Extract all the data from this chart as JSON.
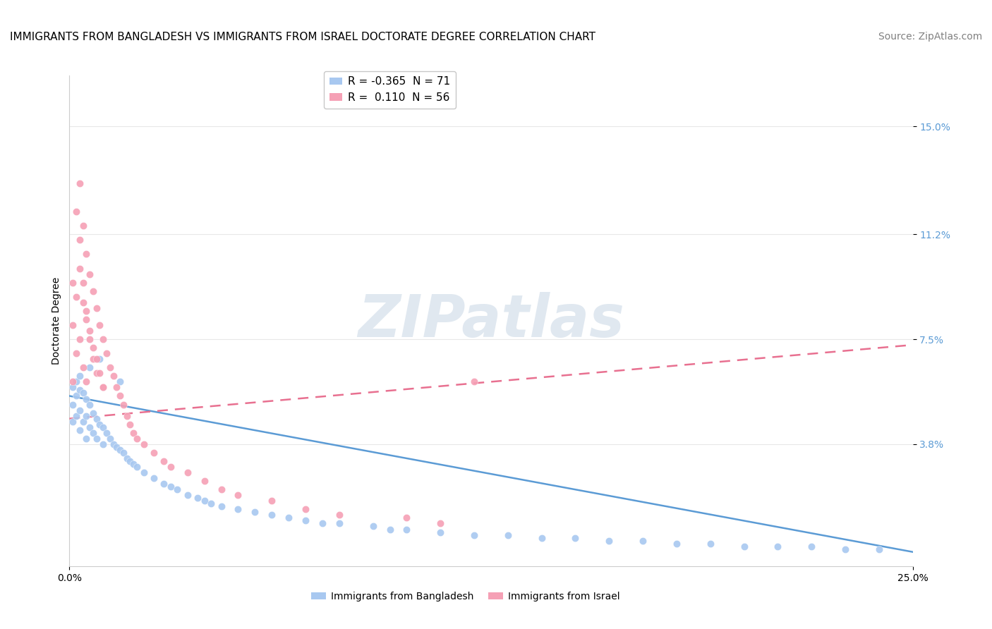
{
  "title": "IMMIGRANTS FROM BANGLADESH VS IMMIGRANTS FROM ISRAEL DOCTORATE DEGREE CORRELATION CHART",
  "source": "Source: ZipAtlas.com",
  "ylabel": "Doctorate Degree",
  "ytick_labels": [
    "3.8%",
    "7.5%",
    "11.2%",
    "15.0%"
  ],
  "ytick_values": [
    0.038,
    0.075,
    0.112,
    0.15
  ],
  "xlim": [
    0.0,
    0.25
  ],
  "ylim": [
    -0.005,
    0.168
  ],
  "watermark": "ZIPatlas",
  "legend_entries": [
    {
      "label": "R = -0.365  N = 71",
      "color": "#A8C8F0"
    },
    {
      "label": "R =  0.110  N = 56",
      "color": "#F5A0B5"
    }
  ],
  "series_bangladesh": {
    "color": "#A8C8F0",
    "x": [
      0.001,
      0.001,
      0.001,
      0.002,
      0.002,
      0.002,
      0.003,
      0.003,
      0.003,
      0.004,
      0.004,
      0.005,
      0.005,
      0.005,
      0.006,
      0.006,
      0.007,
      0.007,
      0.008,
      0.008,
      0.009,
      0.01,
      0.01,
      0.011,
      0.012,
      0.013,
      0.014,
      0.015,
      0.016,
      0.017,
      0.018,
      0.019,
      0.02,
      0.022,
      0.025,
      0.028,
      0.03,
      0.032,
      0.035,
      0.038,
      0.04,
      0.042,
      0.045,
      0.05,
      0.055,
      0.06,
      0.065,
      0.07,
      0.075,
      0.08,
      0.09,
      0.095,
      0.1,
      0.11,
      0.12,
      0.13,
      0.14,
      0.15,
      0.16,
      0.17,
      0.18,
      0.19,
      0.2,
      0.21,
      0.22,
      0.23,
      0.24,
      0.003,
      0.006,
      0.009,
      0.015
    ],
    "y": [
      0.058,
      0.052,
      0.046,
      0.06,
      0.055,
      0.048,
      0.057,
      0.05,
      0.043,
      0.056,
      0.046,
      0.054,
      0.048,
      0.04,
      0.052,
      0.044,
      0.049,
      0.042,
      0.047,
      0.04,
      0.045,
      0.044,
      0.038,
      0.042,
      0.04,
      0.038,
      0.037,
      0.036,
      0.035,
      0.033,
      0.032,
      0.031,
      0.03,
      0.028,
      0.026,
      0.024,
      0.023,
      0.022,
      0.02,
      0.019,
      0.018,
      0.017,
      0.016,
      0.015,
      0.014,
      0.013,
      0.012,
      0.011,
      0.01,
      0.01,
      0.009,
      0.008,
      0.008,
      0.007,
      0.006,
      0.006,
      0.005,
      0.005,
      0.004,
      0.004,
      0.003,
      0.003,
      0.002,
      0.002,
      0.002,
      0.001,
      0.001,
      0.062,
      0.065,
      0.068,
      0.06
    ]
  },
  "series_israel": {
    "color": "#F5A0B5",
    "x": [
      0.001,
      0.001,
      0.001,
      0.002,
      0.002,
      0.002,
      0.003,
      0.003,
      0.003,
      0.004,
      0.004,
      0.004,
      0.005,
      0.005,
      0.005,
      0.006,
      0.006,
      0.007,
      0.007,
      0.008,
      0.008,
      0.009,
      0.01,
      0.01,
      0.011,
      0.012,
      0.013,
      0.014,
      0.015,
      0.016,
      0.017,
      0.018,
      0.019,
      0.02,
      0.022,
      0.025,
      0.028,
      0.03,
      0.035,
      0.04,
      0.045,
      0.05,
      0.06,
      0.07,
      0.08,
      0.1,
      0.11,
      0.12,
      0.003,
      0.004,
      0.005,
      0.006,
      0.007,
      0.008,
      0.009,
      0.01
    ],
    "y": [
      0.08,
      0.095,
      0.06,
      0.12,
      0.09,
      0.07,
      0.13,
      0.1,
      0.075,
      0.115,
      0.088,
      0.065,
      0.105,
      0.082,
      0.06,
      0.098,
      0.075,
      0.092,
      0.068,
      0.086,
      0.063,
      0.08,
      0.075,
      0.058,
      0.07,
      0.065,
      0.062,
      0.058,
      0.055,
      0.052,
      0.048,
      0.045,
      0.042,
      0.04,
      0.038,
      0.035,
      0.032,
      0.03,
      0.028,
      0.025,
      0.022,
      0.02,
      0.018,
      0.015,
      0.013,
      0.012,
      0.01,
      0.06,
      0.11,
      0.095,
      0.085,
      0.078,
      0.072,
      0.068,
      0.063,
      0.058
    ]
  },
  "trendline_bangladesh": {
    "x_start": 0.0,
    "x_end": 0.25,
    "y_start": 0.055,
    "y_end": 0.0,
    "color": "#5B9BD5",
    "linestyle": "solid"
  },
  "trendline_israel": {
    "x_start": 0.0,
    "x_end": 0.25,
    "y_start": 0.047,
    "y_end": 0.073,
    "color": "#E87090",
    "linestyle": "dashed"
  },
  "background_color": "#FFFFFF",
  "grid_color": "#E8E8E8",
  "title_fontsize": 11,
  "source_fontsize": 10,
  "axis_label_fontsize": 10,
  "tick_fontsize": 10,
  "watermark_color": "#E0E8F0",
  "watermark_fontsize": 60,
  "legend_fontsize": 11
}
